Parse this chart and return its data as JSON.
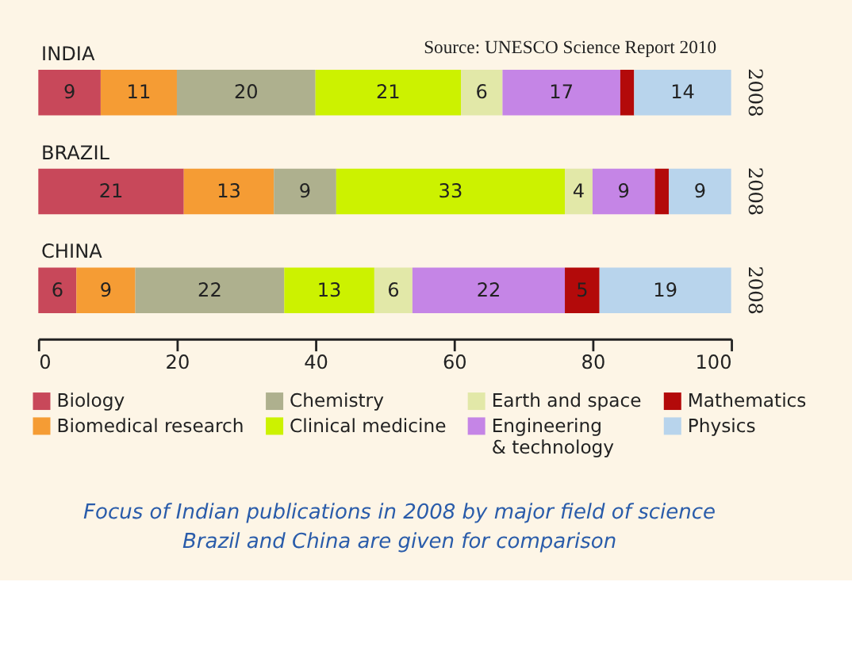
{
  "chart_data": {
    "type": "bar",
    "orientation": "horizontal",
    "stacked": true,
    "title": "Focus of Indian publications in 2008 by major field of science",
    "subtitle": "Brazil and China are given for comparison",
    "categories": [
      "INDIA",
      "BRAZIL",
      "CHINA"
    ],
    "xlim": [
      0,
      100
    ],
    "xticks": [
      0,
      20,
      40,
      60,
      80,
      100
    ],
    "grid": false,
    "legend": "bottom",
    "series": [
      {
        "name": "Biology",
        "color": "#c8485a",
        "values": [
          9,
          21,
          5.5
        ],
        "value_labels": [
          "9",
          "21",
          "6"
        ]
      },
      {
        "name": "Biomedical research",
        "color": "#f59c34",
        "values": [
          11,
          13,
          8.5
        ],
        "value_labels": [
          "11",
          "13",
          "9"
        ]
      },
      {
        "name": "Chemistry",
        "color": "#aeb08e",
        "values": [
          20,
          9,
          21.5
        ],
        "value_labels": [
          "20",
          "9",
          "22"
        ]
      },
      {
        "name": "Clinical medicine",
        "color": "#ccf200",
        "values": [
          21,
          33,
          13
        ],
        "value_labels": [
          "21",
          "33",
          "13"
        ]
      },
      {
        "name": "Earth and space",
        "color": "#e2e8a8",
        "values": [
          6,
          4,
          5.5
        ],
        "value_labels": [
          "6",
          "4",
          "6"
        ]
      },
      {
        "name": "Engineering & technology",
        "color": "#c585e6",
        "values": [
          17,
          9,
          22
        ],
        "value_labels": [
          "17",
          "9",
          "22"
        ]
      },
      {
        "name": "Mathematics",
        "color": "#b30a0a",
        "values": [
          2,
          2,
          5
        ],
        "value_labels": [
          null,
          null,
          "5"
        ]
      },
      {
        "name": "Physics",
        "color": "#b8d4ec",
        "values": [
          14,
          9,
          19
        ],
        "value_labels": [
          "14",
          "9",
          "19"
        ]
      }
    ],
    "annotations": [
      "Source: UNESCO Science Report 2010",
      "2008",
      "2008",
      "2008"
    ]
  }
}
